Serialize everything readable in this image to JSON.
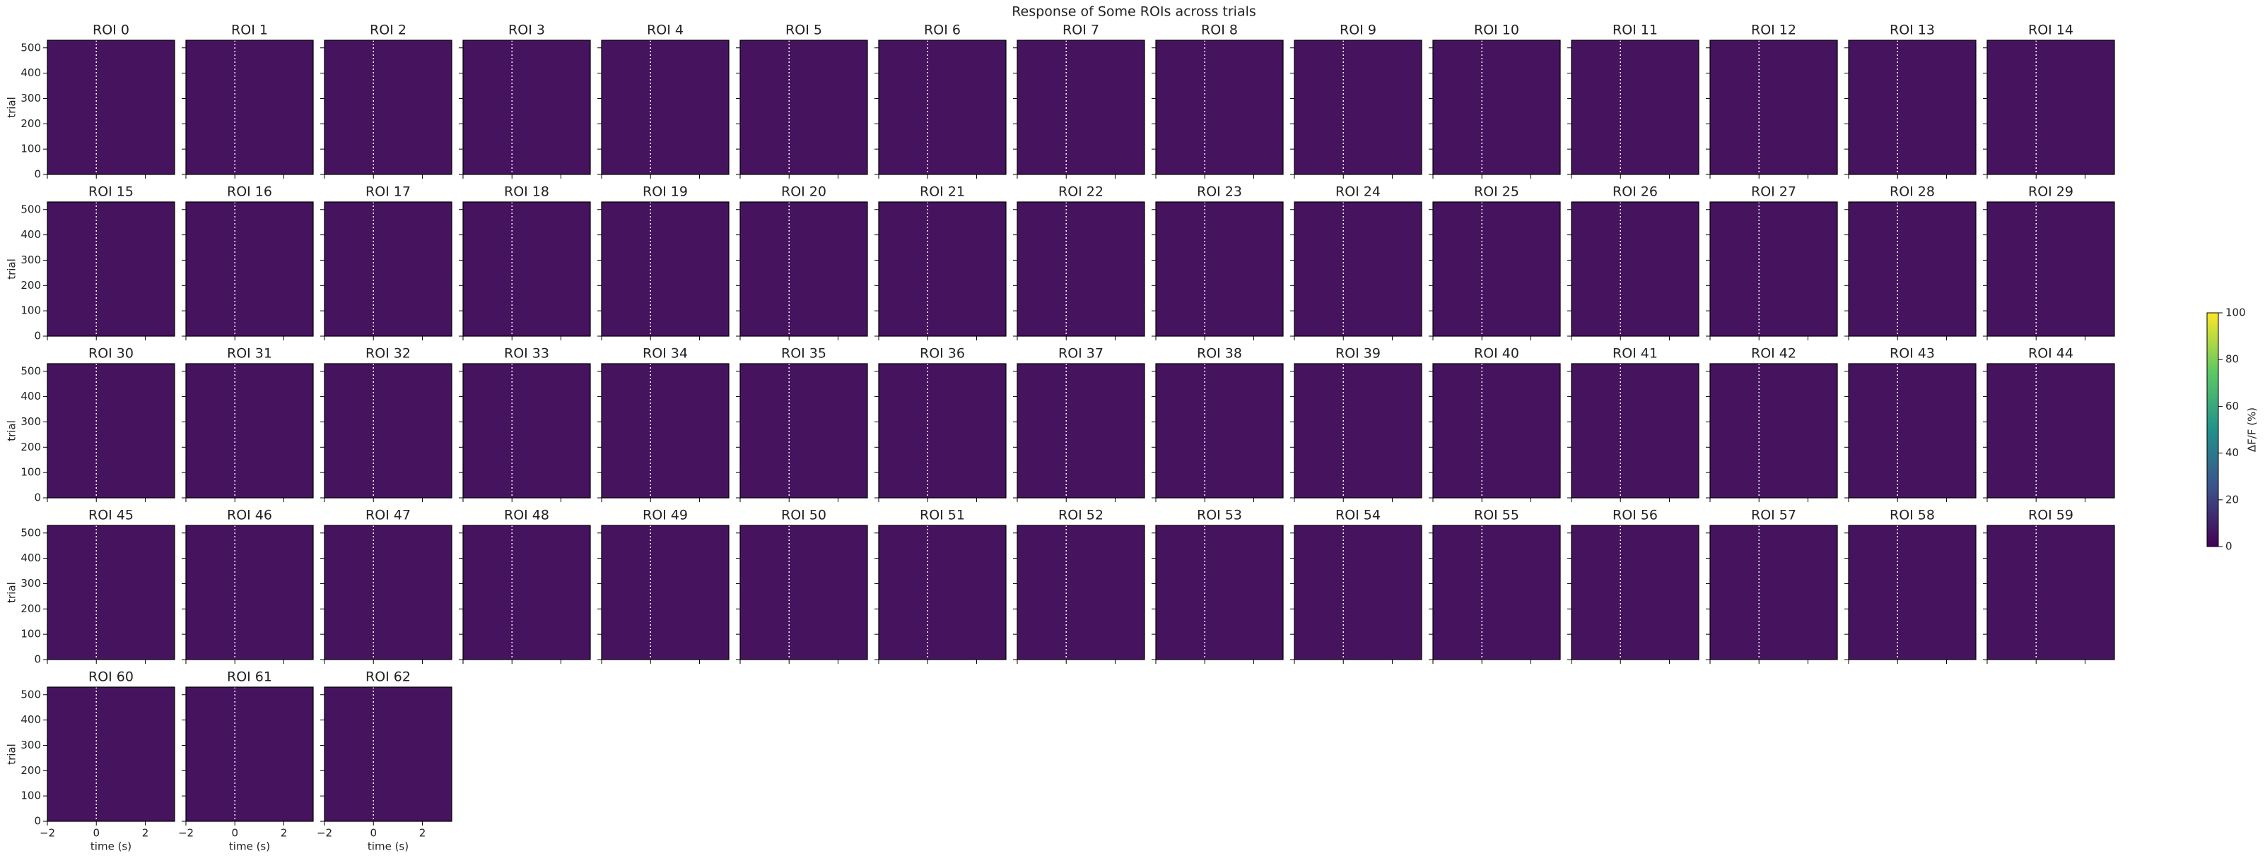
{
  "chart_data": {
    "type": "heatmap",
    "title": "Response of Some ROIs across trials",
    "panel_titles": [
      "ROI 0",
      "ROI 1",
      "ROI 2",
      "ROI 3",
      "ROI 4",
      "ROI 5",
      "ROI 6",
      "ROI 7",
      "ROI 8",
      "ROI 9",
      "ROI 10",
      "ROI 11",
      "ROI 12",
      "ROI 13",
      "ROI 14",
      "ROI 15",
      "ROI 16",
      "ROI 17",
      "ROI 18",
      "ROI 19",
      "ROI 20",
      "ROI 21",
      "ROI 22",
      "ROI 23",
      "ROI 24",
      "ROI 25",
      "ROI 26",
      "ROI 27",
      "ROI 28",
      "ROI 29",
      "ROI 30",
      "ROI 31",
      "ROI 32",
      "ROI 33",
      "ROI 34",
      "ROI 35",
      "ROI 36",
      "ROI 37",
      "ROI 38",
      "ROI 39",
      "ROI 40",
      "ROI 41",
      "ROI 42",
      "ROI 43",
      "ROI 44",
      "ROI 45",
      "ROI 46",
      "ROI 47",
      "ROI 48",
      "ROI 49",
      "ROI 50",
      "ROI 51",
      "ROI 52",
      "ROI 53",
      "ROI 54",
      "ROI 55",
      "ROI 56",
      "ROI 57",
      "ROI 58",
      "ROI 59",
      "ROI 60",
      "ROI 61",
      "ROI 62"
    ],
    "xlabel": "time (s)",
    "ylabel": "trial",
    "xlim": [
      -2,
      3.2
    ],
    "xticks": [
      {
        "value": -2,
        "label": "−2"
      },
      0,
      2
    ],
    "ylim": [
      0,
      530
    ],
    "yticks": [
      0,
      100,
      200,
      300,
      400,
      500
    ],
    "cmap": "viridis",
    "colorbar": {
      "label": "ΔF/F (%)",
      "lim": [
        0,
        100
      ],
      "ticks": [
        0,
        20,
        40,
        60,
        80,
        100
      ]
    }
  }
}
